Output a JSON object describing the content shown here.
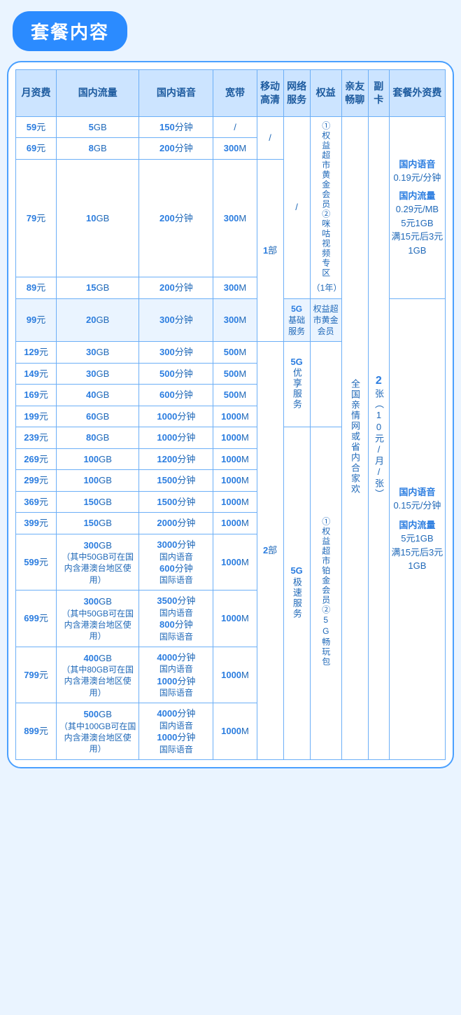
{
  "title": "套餐内容",
  "headers": {
    "fee": "月资费",
    "data": "国内流量",
    "voice": "国内语音",
    "broadband": "宽带",
    "tv": "移动高清",
    "net": "网络服务",
    "benefit": "权益",
    "family": "亲友畅聊",
    "subcard": "副卡",
    "extra": "套餐外资费"
  },
  "units": {
    "yuan": "元",
    "gb": "GB",
    "min": "分钟",
    "m": "M",
    "bu": "部"
  },
  "rows": [
    {
      "fee": "59",
      "data": "5",
      "voice": "150",
      "bb": "/"
    },
    {
      "fee": "69",
      "data": "8",
      "voice": "200",
      "bb": "300"
    },
    {
      "fee": "79",
      "data": "10",
      "voice": "200",
      "bb": "300"
    },
    {
      "fee": "89",
      "data": "15",
      "voice": "200",
      "bb": "300"
    },
    {
      "fee": "99",
      "data": "20",
      "voice": "300",
      "bb": "300"
    },
    {
      "fee": "129",
      "data": "30",
      "voice": "300",
      "bb": "500"
    },
    {
      "fee": "149",
      "data": "30",
      "voice": "500",
      "bb": "500"
    },
    {
      "fee": "169",
      "data": "40",
      "voice": "600",
      "bb": "500"
    },
    {
      "fee": "199",
      "data": "60",
      "voice": "1000",
      "bb": "1000"
    },
    {
      "fee": "239",
      "data": "80",
      "voice": "1000",
      "bb": "1000"
    },
    {
      "fee": "269",
      "data": "100",
      "voice": "1200",
      "bb": "1000"
    },
    {
      "fee": "299",
      "data": "100",
      "voice": "1500",
      "bb": "1000"
    },
    {
      "fee": "369",
      "data": "150",
      "voice": "1500",
      "bb": "1000"
    },
    {
      "fee": "399",
      "data": "150",
      "voice": "2000",
      "bb": "1000"
    },
    {
      "fee": "599",
      "data": "300",
      "data_note": "（其中50GB可在国内含港澳台地区使用）",
      "voice": "3000",
      "voice2": "600",
      "bb": "1000"
    },
    {
      "fee": "699",
      "data": "300",
      "data_note": "（其中50GB可在国内含港澳台地区使用）",
      "voice": "3500",
      "voice2": "800",
      "bb": "1000"
    },
    {
      "fee": "799",
      "data": "400",
      "data_note": "（其中80GB可在国内含港澳台地区使用）",
      "voice": "4000",
      "voice2": "1000",
      "bb": "1000"
    },
    {
      "fee": "899",
      "data": "500",
      "data_note": "（其中100GB可在国内含港澳台地区使用）",
      "voice": "4000",
      "voice2": "1000",
      "bb": "1000"
    }
  ],
  "voice_labels": {
    "dom": "国内语音",
    "intl": "国际语音"
  },
  "tv": {
    "a": "/",
    "b": "1",
    "c": "2"
  },
  "net": {
    "a": "/",
    "b": "5G基础服务",
    "c": "5G优享服务",
    "d": "5G极速服务",
    "c_prefix": "5G",
    "c_body": "优享服务",
    "d_prefix": "5G",
    "d_body": "极速服务"
  },
  "benefit": {
    "a": "①权益超市黄金会员②咪咕视频专区（1年）",
    "a_prefix": "①",
    "a_body1": "权益超市黄金会员",
    "a_mid": "②",
    "a_body2": "咪咕视频专区",
    "a_tail": "（1年）",
    "b": "权益超市黄金会员",
    "c_prefix": "①",
    "c_body1": "权益超市铂金会员",
    "c_mid": "②",
    "c_body2": "5G畅玩包"
  },
  "family": "全国亲情网或省内合家欢",
  "subcard": {
    "num": "2",
    "unit": "张",
    "note": "（10元/月/张）"
  },
  "extra": {
    "a": {
      "voice_hdr": "国内语音",
      "voice_val": "0.19元/分钟",
      "data_hdr": "国内流量",
      "data_val1": "0.29元/MB",
      "data_val2": "5元1GB",
      "data_val3": "满15元后3元1GB"
    },
    "b": {
      "voice_hdr": "国内语音",
      "voice_val": "0.15元/分钟",
      "data_hdr": "国内流量",
      "data_val1": "5元1GB",
      "data_val2": "满15元后3元1GB"
    }
  }
}
